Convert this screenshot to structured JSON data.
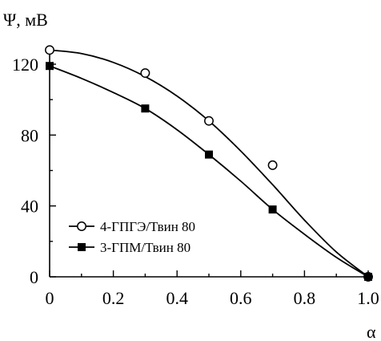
{
  "chart_data": {
    "type": "scatter",
    "xlabel": "α",
    "ylabel": "Ψ, мВ",
    "xlim": [
      0,
      1.0
    ],
    "ylim": [
      0,
      130
    ],
    "xticks": [
      0,
      0.2,
      0.4,
      0.6,
      0.8,
      1.0
    ],
    "xtick_labels": [
      "0",
      "0.2",
      "0.4",
      "0.6",
      "0.8",
      "1.0"
    ],
    "yticks": [
      0,
      40,
      80,
      120
    ],
    "ytick_labels": [
      "0",
      "40",
      "80",
      "120"
    ],
    "grid": false,
    "legend_position": "bottom-left",
    "series": [
      {
        "name": "4-ГПГЭ/Твин 80",
        "marker": "open-circle",
        "color": "#000000",
        "x": [
          0,
          0.3,
          0.5,
          0.7,
          1.0
        ],
        "y": [
          128,
          115,
          88,
          63,
          0
        ],
        "fit_curve": {
          "x": [
            0,
            0.1,
            0.2,
            0.3,
            0.4,
            0.5,
            0.6,
            0.7,
            0.8,
            0.9,
            1.0
          ],
          "y": [
            128,
            126,
            121,
            113,
            102,
            88,
            71,
            52,
            32,
            14,
            0
          ]
        }
      },
      {
        "name": "3-ГПМ/Твин 80",
        "marker": "filled-square",
        "color": "#000000",
        "x": [
          0,
          0.3,
          0.5,
          0.7,
          1.0
        ],
        "y": [
          119,
          95,
          69,
          38,
          0
        ],
        "fit_curve": {
          "x": [
            0,
            0.1,
            0.2,
            0.3,
            0.4,
            0.5,
            0.6,
            0.7,
            0.8,
            0.9,
            1.0
          ],
          "y": [
            119,
            112,
            104,
            95,
            83,
            69,
            54,
            38,
            24,
            11,
            0
          ]
        }
      }
    ]
  }
}
